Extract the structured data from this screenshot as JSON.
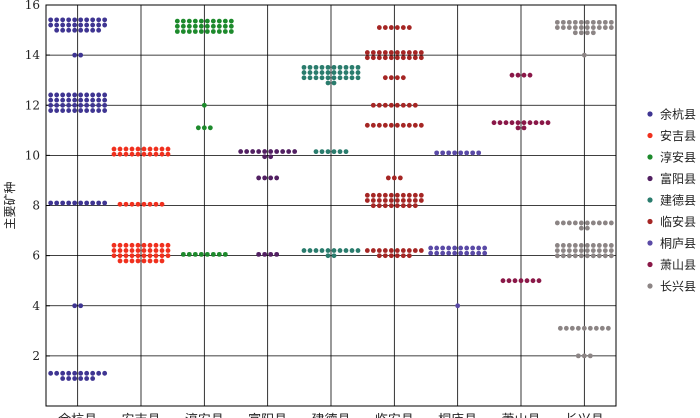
{
  "chart_data": {
    "type": "scatter",
    "subtype": "beeswarm",
    "title": "",
    "xlabel": "",
    "ylabel": "主要矿种",
    "ylim": [
      0,
      16
    ],
    "yticks": [
      2,
      4,
      6,
      8,
      10,
      12,
      14,
      16
    ],
    "grid": true,
    "legend_position": "right",
    "categories": [
      "余杭县",
      "安吉县",
      "淳安县",
      "富阳县",
      "建德县",
      "临安县",
      "桐庐县",
      "萧山县",
      "长兴县"
    ],
    "series": [
      {
        "name": "余杭县",
        "color": "#3f3592",
        "groups": [
          {
            "y": 15.2,
            "n": 28
          },
          {
            "y": 14.0,
            "n": 2
          },
          {
            "y": 12.1,
            "n": 40
          },
          {
            "y": 8.1,
            "n": 10
          },
          {
            "y": 4.0,
            "n": 2
          },
          {
            "y": 1.2,
            "n": 16
          }
        ]
      },
      {
        "name": "安吉县",
        "color": "#f0301e",
        "groups": [
          {
            "y": 10.15,
            "n": 20
          },
          {
            "y": 8.05,
            "n": 8
          },
          {
            "y": 6.1,
            "n": 38
          }
        ]
      },
      {
        "name": "淳安县",
        "color": "#1d8a2c",
        "groups": [
          {
            "y": 15.15,
            "n": 30
          },
          {
            "y": 12.0,
            "n": 1
          },
          {
            "y": 11.1,
            "n": 3
          },
          {
            "y": 6.05,
            "n": 8
          }
        ]
      },
      {
        "name": "富阳县",
        "color": "#522062",
        "groups": [
          {
            "y": 10.05,
            "n": 12
          },
          {
            "y": 9.1,
            "n": 4
          },
          {
            "y": 6.05,
            "n": 4
          }
        ]
      },
      {
        "name": "建德县",
        "color": "#2a7c6d",
        "groups": [
          {
            "y": 13.2,
            "n": 32
          },
          {
            "y": 10.15,
            "n": 6
          },
          {
            "y": 6.1,
            "n": 12
          }
        ]
      },
      {
        "name": "临安县",
        "color": "#a52624",
        "groups": [
          {
            "y": 15.1,
            "n": 6
          },
          {
            "y": 14.0,
            "n": 20
          },
          {
            "y": 13.1,
            "n": 4
          },
          {
            "y": 12.0,
            "n": 8
          },
          {
            "y": 11.2,
            "n": 10
          },
          {
            "y": 9.1,
            "n": 3
          },
          {
            "y": 8.2,
            "n": 28
          },
          {
            "y": 6.1,
            "n": 16
          }
        ]
      },
      {
        "name": "桐庐县",
        "color": "#5a4aa6",
        "groups": [
          {
            "y": 10.1,
            "n": 8
          },
          {
            "y": 6.2,
            "n": 20
          },
          {
            "y": 4.0,
            "n": 1
          }
        ]
      },
      {
        "name": "萧山县",
        "color": "#8a1848",
        "groups": [
          {
            "y": 13.2,
            "n": 4
          },
          {
            "y": 11.2,
            "n": 12
          },
          {
            "y": 5.0,
            "n": 7
          }
        ]
      },
      {
        "name": "长兴县",
        "color": "#8c8585",
        "groups": [
          {
            "y": 15.1,
            "n": 24
          },
          {
            "y": 14.0,
            "n": 1
          },
          {
            "y": 7.2,
            "n": 12
          },
          {
            "y": 6.2,
            "n": 30
          },
          {
            "y": 3.1,
            "n": 9
          },
          {
            "y": 2.0,
            "n": 3
          }
        ]
      }
    ]
  }
}
